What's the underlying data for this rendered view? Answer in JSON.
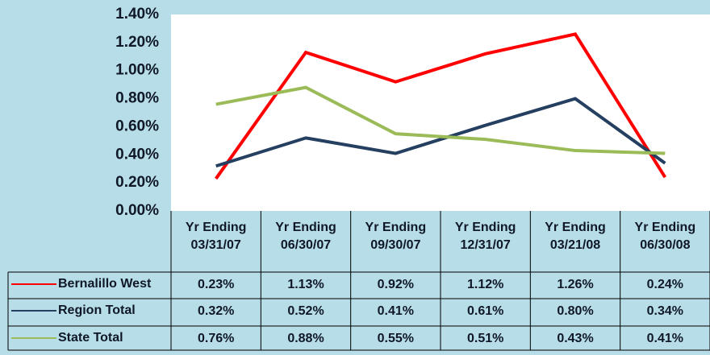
{
  "chart_data": {
    "type": "line",
    "categories": [
      "Yr Ending 03/31/07",
      "Yr Ending 06/30/07",
      "Yr Ending 09/30/07",
      "Yr Ending 12/31/07",
      "Yr Ending 03/21/08",
      "Yr Ending 06/30/08"
    ],
    "series": [
      {
        "name": "Bernalillo West",
        "color": "#ff0000",
        "values": [
          0.23,
          1.13,
          0.92,
          1.12,
          1.26,
          0.24
        ],
        "value_labels": [
          "0.23%",
          "1.13%",
          "0.92%",
          "1.12%",
          "1.26%",
          "0.24%"
        ]
      },
      {
        "name": "Region Total",
        "color": "#243f60",
        "values": [
          0.32,
          0.52,
          0.41,
          0.61,
          0.8,
          0.34
        ],
        "value_labels": [
          "0.32%",
          "0.52%",
          "0.41%",
          "0.61%",
          "0.80%",
          "0.34%"
        ]
      },
      {
        "name": "State Total",
        "color": "#9bbb59",
        "values": [
          0.76,
          0.88,
          0.55,
          0.51,
          0.43,
          0.41
        ],
        "value_labels": [
          "0.76%",
          "0.88%",
          "0.55%",
          "0.51%",
          "0.43%",
          "0.41%"
        ]
      }
    ],
    "ylim": [
      0,
      1.4
    ],
    "yticks": [
      {
        "value": 0,
        "label": "0.00%"
      },
      {
        "value": 0.2,
        "label": "0.20%"
      },
      {
        "value": 0.4,
        "label": "0.40%"
      },
      {
        "value": 0.6,
        "label": "0.60%"
      },
      {
        "value": 0.8,
        "label": "0.80%"
      },
      {
        "value": 1.0,
        "label": "1.00%"
      },
      {
        "value": 1.2,
        "label": "1.20%"
      },
      {
        "value": 1.4,
        "label": "1.40%"
      }
    ],
    "grid": false
  }
}
